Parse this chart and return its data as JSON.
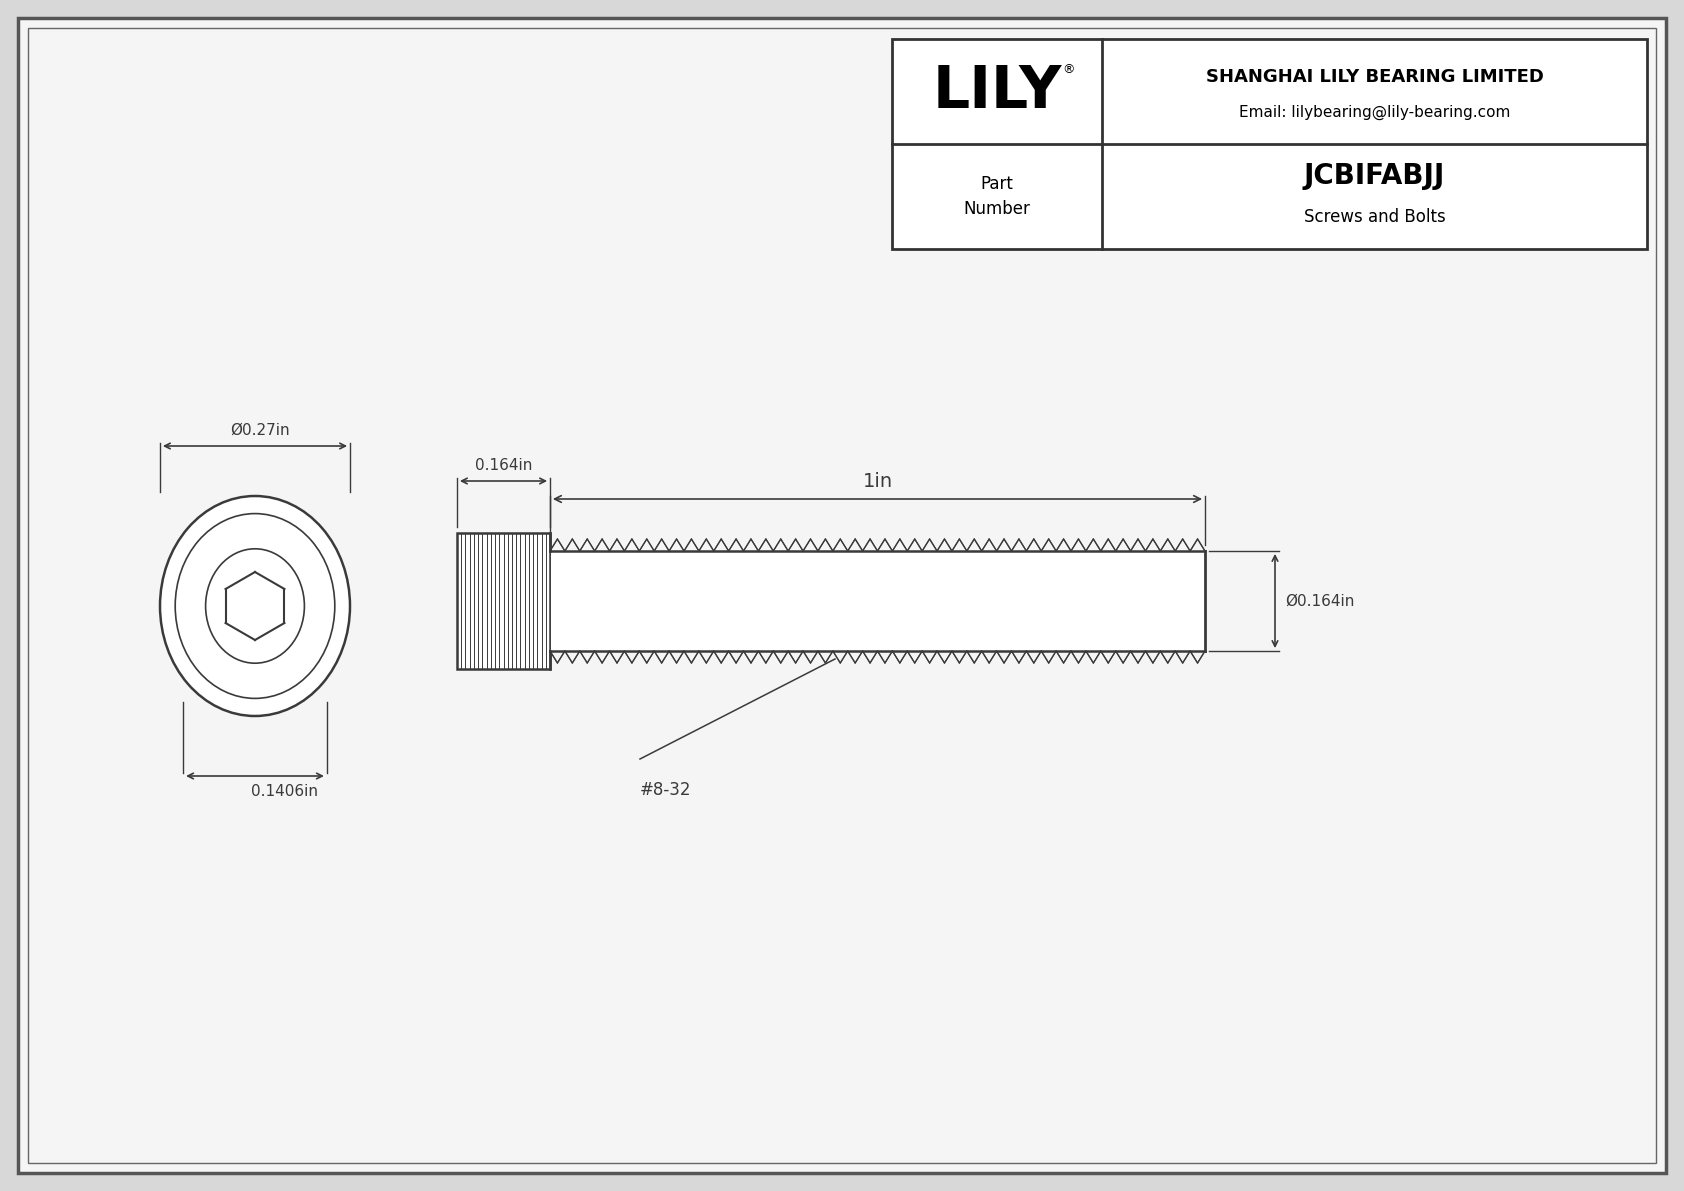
{
  "bg_color": "#d8d8d8",
  "paper_color": "#f5f5f5",
  "line_color": "#3a3a3a",
  "title": "JCBIFABJJ",
  "subtitle": "Screws and Bolts",
  "company": "SHANGHAI LILY BEARING LIMITED",
  "email": "Email: lilybearing@lily-bearing.com",
  "part_label": "Part\nNumber",
  "dim_diameter_head": "Ø0.27in",
  "dim_head_length": "0.164in",
  "dim_shaft_length": "1in",
  "dim_shaft_dia": "Ø0.164in",
  "dim_head_bottom": "0.1406in",
  "thread_label": "#8-32",
  "logo_text": "LILY",
  "logo_reg": "®"
}
